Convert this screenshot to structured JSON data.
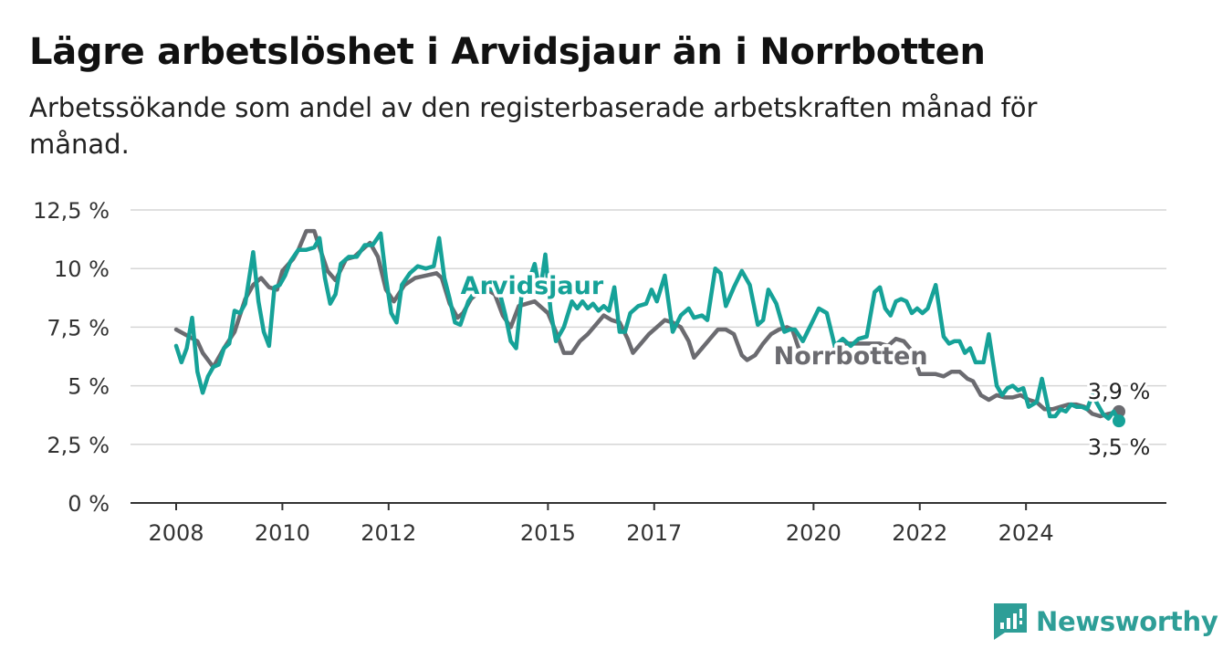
{
  "header": {
    "title": "Lägre arbetslöshet i Arvidsjaur än i Norrbotten",
    "subtitle": "Arbetssökande som andel av den registerbaserade arbetskraften månad för månad."
  },
  "brand": {
    "name": "Newsworthy",
    "icon": "newsworthy-logo-icon",
    "color": "#2e9e97"
  },
  "chart_data": {
    "type": "line",
    "title": "Lägre arbetslöshet i Arvidsjaur än i Norrbotten",
    "ylim": [
      0,
      12.5
    ],
    "xlim": [
      2008.0,
      2025.75
    ],
    "y_ticks": [
      {
        "value": 0,
        "label": "0 %"
      },
      {
        "value": 2.5,
        "label": "2,5 %"
      },
      {
        "value": 5,
        "label": "5 %"
      },
      {
        "value": 7.5,
        "label": "7,5 %"
      },
      {
        "value": 10,
        "label": "10 %"
      },
      {
        "value": 12.5,
        "label": "12,5 %"
      }
    ],
    "x_ticks": [
      {
        "value": 2008,
        "label": "2008"
      },
      {
        "value": 2010,
        "label": "2010"
      },
      {
        "value": 2012,
        "label": "2012"
      },
      {
        "value": 2015,
        "label": "2015"
      },
      {
        "value": 2017,
        "label": "2017"
      },
      {
        "value": 2020,
        "label": "2020"
      },
      {
        "value": 2022,
        "label": "2022"
      },
      {
        "value": 2024,
        "label": "2024"
      }
    ],
    "grid": true,
    "series": [
      {
        "name": "Norrbotten",
        "color": "#6b6b70",
        "end_label": "3,9 %",
        "points": [
          [
            2008.0,
            7.4
          ],
          [
            2008.4,
            6.9
          ],
          [
            2008.5,
            6.4
          ],
          [
            2008.7,
            5.8
          ],
          [
            2008.9,
            6.6
          ],
          [
            2009.1,
            7.3
          ],
          [
            2009.3,
            8.7
          ],
          [
            2009.45,
            9.3
          ],
          [
            2009.6,
            9.6
          ],
          [
            2009.75,
            9.2
          ],
          [
            2009.9,
            9.1
          ],
          [
            2010.0,
            9.9
          ],
          [
            2010.2,
            10.4
          ],
          [
            2010.3,
            10.8
          ],
          [
            2010.45,
            11.6
          ],
          [
            2010.6,
            11.6
          ],
          [
            2010.7,
            10.9
          ],
          [
            2010.85,
            9.9
          ],
          [
            2011.0,
            9.5
          ],
          [
            2011.2,
            10.4
          ],
          [
            2011.35,
            10.5
          ],
          [
            2011.5,
            10.8
          ],
          [
            2011.65,
            11.1
          ],
          [
            2011.8,
            10.5
          ],
          [
            2011.95,
            9.1
          ],
          [
            2012.1,
            8.6
          ],
          [
            2012.3,
            9.3
          ],
          [
            2012.5,
            9.6
          ],
          [
            2012.7,
            9.7
          ],
          [
            2012.9,
            9.8
          ],
          [
            2013.0,
            9.6
          ],
          [
            2013.15,
            8.5
          ],
          [
            2013.3,
            7.9
          ],
          [
            2013.4,
            8.1
          ],
          [
            2013.55,
            8.7
          ],
          [
            2013.7,
            9.0
          ],
          [
            2013.85,
            9.1
          ],
          [
            2014.0,
            8.9
          ],
          [
            2014.15,
            8.0
          ],
          [
            2014.3,
            7.5
          ],
          [
            2014.45,
            8.4
          ],
          [
            2014.6,
            8.5
          ],
          [
            2014.75,
            8.6
          ],
          [
            2014.9,
            8.3
          ],
          [
            2015.0,
            8.1
          ],
          [
            2015.15,
            7.3
          ],
          [
            2015.3,
            6.4
          ],
          [
            2015.45,
            6.4
          ],
          [
            2015.6,
            6.9
          ],
          [
            2015.75,
            7.2
          ],
          [
            2015.9,
            7.6
          ],
          [
            2016.05,
            8.0
          ],
          [
            2016.2,
            7.8
          ],
          [
            2016.35,
            7.7
          ],
          [
            2016.5,
            7.0
          ],
          [
            2016.6,
            6.4
          ],
          [
            2016.75,
            6.8
          ],
          [
            2016.9,
            7.2
          ],
          [
            2017.05,
            7.5
          ],
          [
            2017.2,
            7.8
          ],
          [
            2017.35,
            7.7
          ],
          [
            2017.5,
            7.5
          ],
          [
            2017.65,
            6.9
          ],
          [
            2017.75,
            6.2
          ],
          [
            2017.9,
            6.6
          ],
          [
            2018.05,
            7.0
          ],
          [
            2018.2,
            7.4
          ],
          [
            2018.35,
            7.4
          ],
          [
            2018.5,
            7.2
          ],
          [
            2018.65,
            6.3
          ],
          [
            2018.75,
            6.1
          ],
          [
            2018.9,
            6.3
          ],
          [
            2019.05,
            6.8
          ],
          [
            2019.2,
            7.2
          ],
          [
            2019.35,
            7.4
          ],
          [
            2019.5,
            7.5
          ],
          [
            2019.6,
            7.4
          ],
          [
            2019.75,
            6.4
          ],
          [
            2019.9,
            6.1
          ],
          [
            2020.05,
            6.3
          ],
          [
            2020.2,
            6.3
          ],
          [
            2020.35,
            6.5
          ],
          [
            2020.5,
            6.8
          ],
          [
            2020.65,
            6.8
          ],
          [
            2020.8,
            6.8
          ],
          [
            2020.95,
            6.8
          ],
          [
            2021.1,
            6.8
          ],
          [
            2021.25,
            6.8
          ],
          [
            2021.4,
            6.7
          ],
          [
            2021.55,
            7.0
          ],
          [
            2021.7,
            6.9
          ],
          [
            2021.85,
            6.5
          ],
          [
            2022.0,
            5.5
          ],
          [
            2022.15,
            5.5
          ],
          [
            2022.3,
            5.5
          ],
          [
            2022.45,
            5.4
          ],
          [
            2022.6,
            5.6
          ],
          [
            2022.75,
            5.6
          ],
          [
            2022.9,
            5.3
          ],
          [
            2023.0,
            5.2
          ],
          [
            2023.15,
            4.6
          ],
          [
            2023.3,
            4.4
          ],
          [
            2023.45,
            4.6
          ],
          [
            2023.6,
            4.5
          ],
          [
            2023.75,
            4.5
          ],
          [
            2023.9,
            4.6
          ],
          [
            2024.05,
            4.4
          ],
          [
            2024.2,
            4.3
          ],
          [
            2024.35,
            4.0
          ],
          [
            2024.5,
            4.0
          ],
          [
            2024.65,
            4.1
          ],
          [
            2024.8,
            4.2
          ],
          [
            2024.95,
            4.2
          ],
          [
            2025.1,
            4.1
          ],
          [
            2025.25,
            3.8
          ],
          [
            2025.4,
            3.7
          ],
          [
            2025.55,
            3.8
          ],
          [
            2025.75,
            3.9
          ]
        ]
      },
      {
        "name": "Arvidsjaur",
        "color": "#16a298",
        "end_label": "3,5 %",
        "points": [
          [
            2008.0,
            6.7
          ],
          [
            2008.1,
            6.0
          ],
          [
            2008.2,
            6.6
          ],
          [
            2008.3,
            7.9
          ],
          [
            2008.4,
            5.6
          ],
          [
            2008.5,
            4.7
          ],
          [
            2008.6,
            5.4
          ],
          [
            2008.7,
            5.8
          ],
          [
            2008.8,
            5.9
          ],
          [
            2008.9,
            6.6
          ],
          [
            2009.0,
            6.8
          ],
          [
            2009.1,
            8.2
          ],
          [
            2009.2,
            8.1
          ],
          [
            2009.3,
            8.5
          ],
          [
            2009.45,
            10.7
          ],
          [
            2009.55,
            8.6
          ],
          [
            2009.65,
            7.3
          ],
          [
            2009.75,
            6.7
          ],
          [
            2009.85,
            9.2
          ],
          [
            2009.95,
            9.3
          ],
          [
            2010.05,
            9.7
          ],
          [
            2010.15,
            10.3
          ],
          [
            2010.3,
            10.8
          ],
          [
            2010.45,
            10.8
          ],
          [
            2010.6,
            10.9
          ],
          [
            2010.7,
            11.3
          ],
          [
            2010.8,
            9.6
          ],
          [
            2010.9,
            8.5
          ],
          [
            2011.0,
            8.9
          ],
          [
            2011.1,
            10.2
          ],
          [
            2011.25,
            10.5
          ],
          [
            2011.4,
            10.5
          ],
          [
            2011.55,
            11.0
          ],
          [
            2011.7,
            11.0
          ],
          [
            2011.85,
            11.5
          ],
          [
            2011.95,
            9.6
          ],
          [
            2012.05,
            8.1
          ],
          [
            2012.15,
            7.7
          ],
          [
            2012.25,
            9.3
          ],
          [
            2012.4,
            9.8
          ],
          [
            2012.55,
            10.1
          ],
          [
            2012.7,
            10.0
          ],
          [
            2012.85,
            10.1
          ],
          [
            2012.95,
            11.3
          ],
          [
            2013.05,
            9.6
          ],
          [
            2013.15,
            8.7
          ],
          [
            2013.25,
            7.7
          ],
          [
            2013.35,
            7.6
          ],
          [
            2013.5,
            8.6
          ],
          [
            2013.65,
            9.1
          ],
          [
            2013.8,
            9.2
          ],
          [
            2013.95,
            9.1
          ],
          [
            2014.1,
            8.9
          ],
          [
            2014.2,
            8.0
          ],
          [
            2014.3,
            6.9
          ],
          [
            2014.4,
            6.6
          ],
          [
            2014.5,
            8.8
          ],
          [
            2014.6,
            9.2
          ],
          [
            2014.75,
            10.2
          ],
          [
            2014.85,
            9.0
          ],
          [
            2014.95,
            10.6
          ],
          [
            2015.05,
            8.2
          ],
          [
            2015.15,
            6.9
          ],
          [
            2015.3,
            7.5
          ],
          [
            2015.45,
            8.6
          ],
          [
            2015.55,
            8.3
          ],
          [
            2015.65,
            8.6
          ],
          [
            2015.75,
            8.3
          ],
          [
            2015.85,
            8.5
          ],
          [
            2015.95,
            8.2
          ],
          [
            2016.05,
            8.4
          ],
          [
            2016.15,
            8.2
          ],
          [
            2016.25,
            9.2
          ],
          [
            2016.35,
            7.3
          ],
          [
            2016.45,
            7.3
          ],
          [
            2016.55,
            8.1
          ],
          [
            2016.7,
            8.4
          ],
          [
            2016.85,
            8.5
          ],
          [
            2016.95,
            9.1
          ],
          [
            2017.05,
            8.6
          ],
          [
            2017.2,
            9.7
          ],
          [
            2017.35,
            7.3
          ],
          [
            2017.5,
            8.0
          ],
          [
            2017.65,
            8.3
          ],
          [
            2017.75,
            7.9
          ],
          [
            2017.9,
            8.0
          ],
          [
            2018.0,
            7.8
          ],
          [
            2018.15,
            10.0
          ],
          [
            2018.25,
            9.8
          ],
          [
            2018.35,
            8.4
          ],
          [
            2018.5,
            9.2
          ],
          [
            2018.65,
            9.9
          ],
          [
            2018.8,
            9.3
          ],
          [
            2018.95,
            7.6
          ],
          [
            2019.05,
            7.8
          ],
          [
            2019.15,
            9.1
          ],
          [
            2019.3,
            8.5
          ],
          [
            2019.45,
            7.3
          ],
          [
            2019.55,
            7.4
          ],
          [
            2019.65,
            7.4
          ],
          [
            2019.8,
            6.9
          ],
          [
            2019.95,
            7.6
          ],
          [
            2020.1,
            8.3
          ],
          [
            2020.25,
            8.1
          ],
          [
            2020.4,
            6.7
          ],
          [
            2020.55,
            7.0
          ],
          [
            2020.7,
            6.7
          ],
          [
            2020.85,
            7.0
          ],
          [
            2021.0,
            7.1
          ],
          [
            2021.15,
            9.0
          ],
          [
            2021.25,
            9.2
          ],
          [
            2021.35,
            8.3
          ],
          [
            2021.45,
            8.0
          ],
          [
            2021.55,
            8.6
          ],
          [
            2021.65,
            8.7
          ],
          [
            2021.75,
            8.6
          ],
          [
            2021.85,
            8.1
          ],
          [
            2021.95,
            8.3
          ],
          [
            2022.05,
            8.1
          ],
          [
            2022.15,
            8.3
          ],
          [
            2022.3,
            9.3
          ],
          [
            2022.45,
            7.1
          ],
          [
            2022.55,
            6.8
          ],
          [
            2022.65,
            6.9
          ],
          [
            2022.75,
            6.9
          ],
          [
            2022.85,
            6.4
          ],
          [
            2022.95,
            6.6
          ],
          [
            2023.05,
            6.0
          ],
          [
            2023.2,
            6.0
          ],
          [
            2023.3,
            7.2
          ],
          [
            2023.45,
            5.0
          ],
          [
            2023.55,
            4.6
          ],
          [
            2023.65,
            4.9
          ],
          [
            2023.75,
            5.0
          ],
          [
            2023.85,
            4.8
          ],
          [
            2023.95,
            4.9
          ],
          [
            2024.05,
            4.1
          ],
          [
            2024.2,
            4.3
          ],
          [
            2024.3,
            5.3
          ],
          [
            2024.45,
            3.7
          ],
          [
            2024.55,
            3.7
          ],
          [
            2024.65,
            4.0
          ],
          [
            2024.75,
            3.9
          ],
          [
            2024.85,
            4.2
          ],
          [
            2024.95,
            4.1
          ],
          [
            2025.05,
            4.1
          ],
          [
            2025.15,
            4.0
          ],
          [
            2025.25,
            4.6
          ],
          [
            2025.35,
            4.2
          ],
          [
            2025.45,
            3.8
          ],
          [
            2025.55,
            3.6
          ],
          [
            2025.65,
            3.9
          ],
          [
            2025.75,
            3.5
          ]
        ]
      }
    ],
    "annotations": [
      {
        "text": "Arvidsjaur",
        "series": "Arvidsjaur",
        "x": 2014.7,
        "y": 9.3
      },
      {
        "text": "Norrbotten",
        "series": "Norrbotten",
        "x": 2020.7,
        "y": 6.3
      }
    ]
  }
}
